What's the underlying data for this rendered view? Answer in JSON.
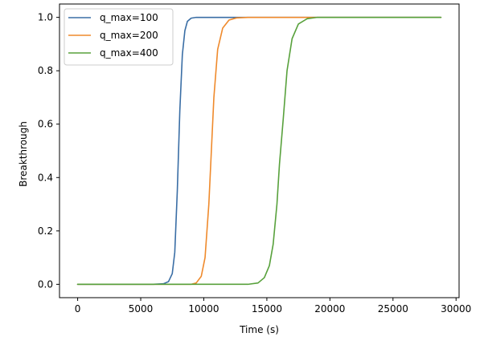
{
  "chart_data": {
    "type": "line",
    "title": "",
    "xlabel": "Time (s)",
    "ylabel": "Breakthrough",
    "xlim": [
      -1440,
      30240
    ],
    "ylim": [
      -0.05,
      1.05
    ],
    "xticks": [
      0,
      5000,
      10000,
      15000,
      20000,
      25000,
      30000
    ],
    "yticks": [
      0.0,
      0.2,
      0.4,
      0.6,
      0.8,
      1.0
    ],
    "xtick_labels": [
      "0",
      "5000",
      "10000",
      "15000",
      "20000",
      "25000",
      "30000"
    ],
    "ytick_labels": [
      "0.0",
      "0.2",
      "0.4",
      "0.6",
      "0.8",
      "1.0"
    ],
    "grid": false,
    "legend_position": "upper-left",
    "x": [
      0,
      6000,
      6800,
      7200,
      7500,
      7700,
      7900,
      8100,
      8300,
      8500,
      8700,
      9000,
      9400,
      10000,
      12000,
      28800
    ],
    "series": [
      {
        "name": "q_max=100",
        "color": "#3a6ea5",
        "points": [
          [
            0,
            0.0
          ],
          [
            6000,
            0.0
          ],
          [
            6800,
            0.002
          ],
          [
            7200,
            0.01
          ],
          [
            7500,
            0.04
          ],
          [
            7700,
            0.12
          ],
          [
            7900,
            0.35
          ],
          [
            8100,
            0.65
          ],
          [
            8300,
            0.86
          ],
          [
            8500,
            0.95
          ],
          [
            8700,
            0.985
          ],
          [
            9000,
            0.997
          ],
          [
            9400,
            1.0
          ],
          [
            12000,
            1.0
          ],
          [
            28800,
            1.0
          ]
        ]
      },
      {
        "name": "q_max=200",
        "color": "#ef8a2c",
        "points": [
          [
            0,
            0.0
          ],
          [
            9000,
            0.0
          ],
          [
            9400,
            0.005
          ],
          [
            9800,
            0.03
          ],
          [
            10100,
            0.1
          ],
          [
            10400,
            0.3
          ],
          [
            10600,
            0.5
          ],
          [
            10800,
            0.7
          ],
          [
            11100,
            0.88
          ],
          [
            11500,
            0.96
          ],
          [
            12000,
            0.99
          ],
          [
            12600,
            0.998
          ],
          [
            13500,
            1.0
          ],
          [
            28800,
            1.0
          ]
        ]
      },
      {
        "name": "q_max=400",
        "color": "#58a13c",
        "points": [
          [
            0,
            0.0
          ],
          [
            13500,
            0.0
          ],
          [
            14300,
            0.005
          ],
          [
            14800,
            0.025
          ],
          [
            15200,
            0.07
          ],
          [
            15500,
            0.15
          ],
          [
            15800,
            0.3
          ],
          [
            16000,
            0.45
          ],
          [
            16300,
            0.62
          ],
          [
            16600,
            0.8
          ],
          [
            17000,
            0.92
          ],
          [
            17500,
            0.975
          ],
          [
            18200,
            0.995
          ],
          [
            19000,
            1.0
          ],
          [
            28800,
            1.0
          ]
        ]
      }
    ]
  }
}
